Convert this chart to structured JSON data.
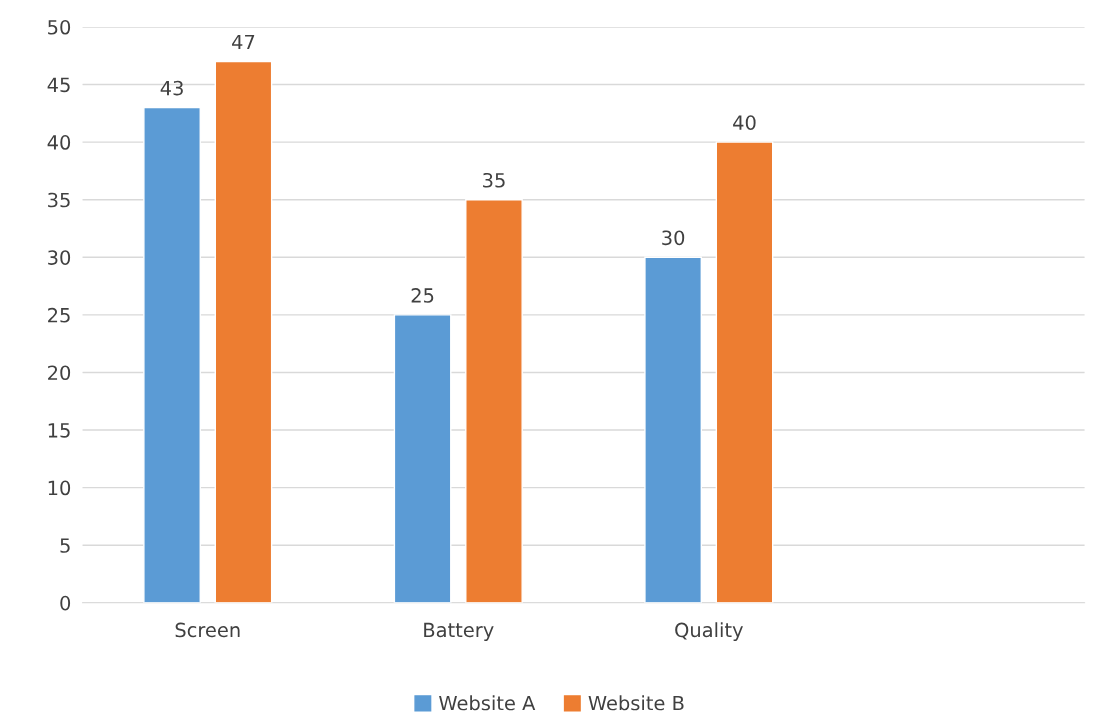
{
  "chart_data": {
    "type": "bar",
    "categories": [
      "Screen",
      "Battery",
      "Quality",
      null
    ],
    "series": [
      {
        "name": "Website A",
        "color": "#5b9bd5",
        "values": [
          43,
          25,
          30,
          null
        ]
      },
      {
        "name": "Website B",
        "color": "#ed7d31",
        "values": [
          47,
          35,
          40,
          null
        ]
      }
    ],
    "ylim": [
      0,
      50
    ],
    "yticks": [
      0,
      5,
      10,
      15,
      20,
      25,
      30,
      35,
      40,
      45,
      50
    ],
    "grid": "y",
    "legend": "bottom",
    "data_labels": true
  }
}
